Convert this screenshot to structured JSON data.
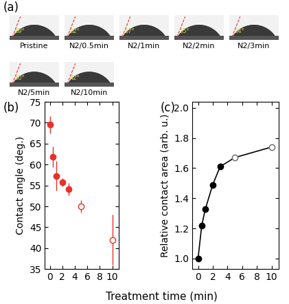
{
  "panel_labels": [
    "(a)",
    "(b)",
    "(c)"
  ],
  "xlabel": "Treatment time (min)",
  "images": [
    {
      "caption": "Pristine",
      "angle_label": "69°"
    },
    {
      "caption": "N2/0.5min",
      "angle_label": "62°"
    },
    {
      "caption": "N2/1min",
      "angle_label": "57°"
    },
    {
      "caption": "N2/2min",
      "angle_label": "55°"
    },
    {
      "caption": "N2/3min",
      "angle_label": "54°"
    },
    {
      "caption": "N2/5min",
      "angle_label": "50°"
    },
    {
      "caption": "N2/10min",
      "angle_label": "42°"
    }
  ],
  "chart_data": [
    {
      "type": "scatter",
      "ylabel": "Contact angle (deg.)",
      "xlim": [
        -0.8,
        11
      ],
      "xticks": [
        0,
        2,
        4,
        6,
        8,
        10
      ],
      "ylim": [
        35,
        75
      ],
      "yticks": [
        35,
        40,
        45,
        50,
        55,
        60,
        65,
        70,
        75
      ],
      "color": "#e8312a",
      "series": [
        {
          "marker": "filled_circle",
          "x": [
            0,
            0.5,
            1,
            2,
            3
          ],
          "values": [
            69.5,
            61.8,
            57.3,
            55.8,
            54.1
          ],
          "errors": [
            2.0,
            2.5,
            3.5,
            1.0,
            1.5
          ]
        },
        {
          "marker": "open_circle",
          "x": [
            5,
            10
          ],
          "values": [
            50.0,
            42.0
          ],
          "errors": [
            1.5,
            6.0
          ]
        }
      ]
    },
    {
      "type": "line",
      "ylabel": "Relative contact area (arb. u.)",
      "xlim": [
        -0.8,
        11
      ],
      "xticks": [
        0,
        2,
        4,
        6,
        8,
        10
      ],
      "ylim": [
        0.93,
        2.04
      ],
      "yticks": [
        {
          "value": 1,
          "label": "1.0"
        },
        1.2,
        1.4,
        1.6,
        1.8,
        {
          "value": 2,
          "label": "2.0"
        }
      ],
      "color": "#000000",
      "series": [
        {
          "marker": "filled_circle",
          "x": [
            0,
            0.5,
            1,
            2,
            3
          ],
          "values": [
            1.0,
            1.22,
            1.33,
            1.49,
            1.61
          ]
        },
        {
          "marker": "open_circle",
          "x": [
            5,
            10
          ],
          "values": [
            1.67,
            1.74
          ]
        }
      ]
    }
  ]
}
